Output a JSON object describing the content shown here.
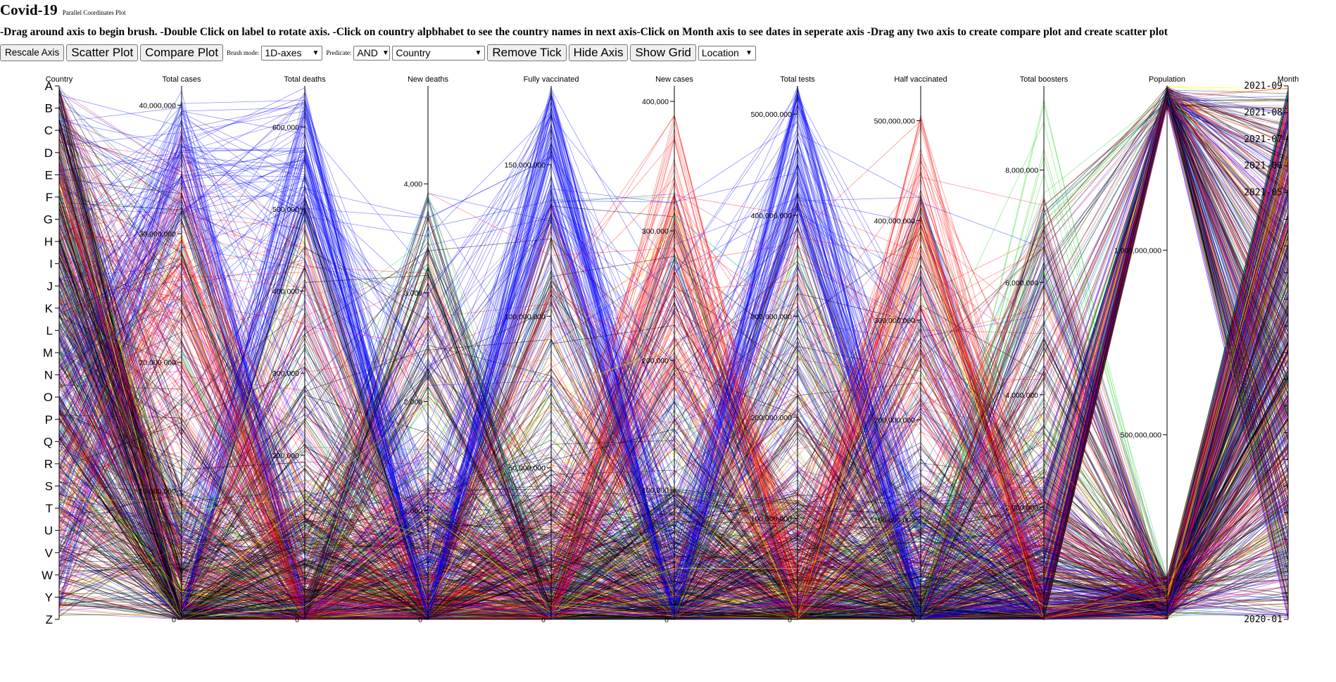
{
  "header": {
    "title": "Covid-19",
    "subtitle": "Parallel Coordinates Plot",
    "instructions": "-Drag around axis to begin brush. -Double Click on label to rotate axis. -Click on country alpbhabet to see the country names in next axis-Click on Month axis to see dates in seperate axis -Drag any two axis to create compare plot and create scatter plot"
  },
  "toolbar": {
    "rescale_label": "Rescale Axis",
    "scatter_label": "Scatter Plot",
    "compare_label": "Compare Plot",
    "brush_mode_label": "Brush mode:",
    "brush_mode_value": "1D-axes",
    "predicate_label": "Predicate:",
    "predicate_value": "AND",
    "axis_select_value": "Country",
    "remove_tick_label": "Remove Tick",
    "hide_axis_label": "Hide Axis",
    "show_grid_label": "Show Grid",
    "location_value": "Location"
  },
  "chart_data": {
    "type": "parallel-coordinates",
    "axes": [
      {
        "name": "Country",
        "kind": "letters",
        "labels": [
          "A",
          "B",
          "C",
          "D",
          "E",
          "F",
          "G",
          "H",
          "I",
          "J",
          "K",
          "L",
          "M",
          "N",
          "O",
          "P",
          "Q",
          "R",
          "S",
          "T",
          "U",
          "V",
          "W",
          "Y",
          "Z"
        ]
      },
      {
        "name": "Total cases",
        "min": 0,
        "max": 41500000,
        "ticks": [
          {
            "v": 0,
            "label": "0"
          },
          {
            "v": 10000000,
            "label": "10,000,000"
          },
          {
            "v": 20000000,
            "label": "20,000,000"
          },
          {
            "v": 30000000,
            "label": "30,000,000"
          },
          {
            "v": 40000000,
            "label": "40,000,000"
          }
        ]
      },
      {
        "name": "Total deaths",
        "min": 0,
        "max": 650000,
        "ticks": [
          {
            "v": 0,
            "label": "0"
          },
          {
            "v": 200000,
            "label": "200,000"
          },
          {
            "v": 300000,
            "label": "300,000"
          },
          {
            "v": 400000,
            "label": "400,000"
          },
          {
            "v": 500000,
            "label": "500,000"
          },
          {
            "v": 600000,
            "label": "600,000"
          }
        ]
      },
      {
        "name": "New deaths",
        "min": 0,
        "max": 4900,
        "ticks": [
          {
            "v": 0,
            "label": "0"
          },
          {
            "v": 1000,
            "label": "1,000"
          },
          {
            "v": 2000,
            "label": "2,000"
          },
          {
            "v": 3000,
            "label": "3,000"
          },
          {
            "v": 4000,
            "label": "4,000"
          }
        ]
      },
      {
        "name": "Fully vaccinated",
        "min": 0,
        "max": 176000000,
        "ticks": [
          {
            "v": 0,
            "label": "0"
          },
          {
            "v": 50000000,
            "label": "50,000,000"
          },
          {
            "v": 100000000,
            "label": "100,000,000"
          },
          {
            "v": 150000000,
            "label": "150,000,000"
          }
        ]
      },
      {
        "name": "New cases",
        "min": 0,
        "max": 412000,
        "ticks": [
          {
            "v": 0,
            "label": "0"
          },
          {
            "v": 100000,
            "label": "100,000"
          },
          {
            "v": 200000,
            "label": "200,000"
          },
          {
            "v": 300000,
            "label": "300,000"
          },
          {
            "v": 400000,
            "label": "400,000"
          }
        ]
      },
      {
        "name": "Total tests",
        "min": 0,
        "max": 528000000,
        "ticks": [
          {
            "v": 0,
            "label": "0"
          },
          {
            "v": 100000000,
            "label": "100,000,000"
          },
          {
            "v": 200000000,
            "label": "200,000,000"
          },
          {
            "v": 300000000,
            "label": "300,000,000"
          },
          {
            "v": 400000000,
            "label": "400,000,000"
          },
          {
            "v": 500000000,
            "label": "500,000,000"
          }
        ]
      },
      {
        "name": "Half vaccinated",
        "min": 0,
        "max": 535000000,
        "ticks": [
          {
            "v": 0,
            "label": "0"
          },
          {
            "v": 100000000,
            "label": "100,000,000"
          },
          {
            "v": 200000000,
            "label": "200,000,000"
          },
          {
            "v": 300000000,
            "label": "300,000,000"
          },
          {
            "v": 400000000,
            "label": "400,000,000"
          },
          {
            "v": 500000000,
            "label": "500,000,000"
          }
        ]
      },
      {
        "name": "Total boosters",
        "min": 0,
        "max": 9500000,
        "ticks": [
          {
            "v": 2000000,
            "label": "2,000,000"
          },
          {
            "v": 4000000,
            "label": "4,000,000"
          },
          {
            "v": 6000000,
            "label": "6,000,000"
          },
          {
            "v": 8000000,
            "label": "8,000,000"
          }
        ]
      },
      {
        "name": "Population",
        "min": 0,
        "max": 1445000000,
        "ticks": [
          {
            "v": 500000000,
            "label": "500,000,000"
          },
          {
            "v": 1000000000,
            "label": "1,000,000,000"
          }
        ]
      },
      {
        "name": "Month",
        "kind": "months",
        "first": "2020-01",
        "last": "2021-09",
        "visible_labels": [
          "2021-09",
          "2021-08",
          "2021-07",
          "2021-06",
          "2021-05",
          "2020-01"
        ]
      }
    ],
    "series_colors": {
      "blue": "#0000ff",
      "red": "#ff0000",
      "green": "#00cc00",
      "black": "#000000",
      "purple": "#800080"
    }
  }
}
